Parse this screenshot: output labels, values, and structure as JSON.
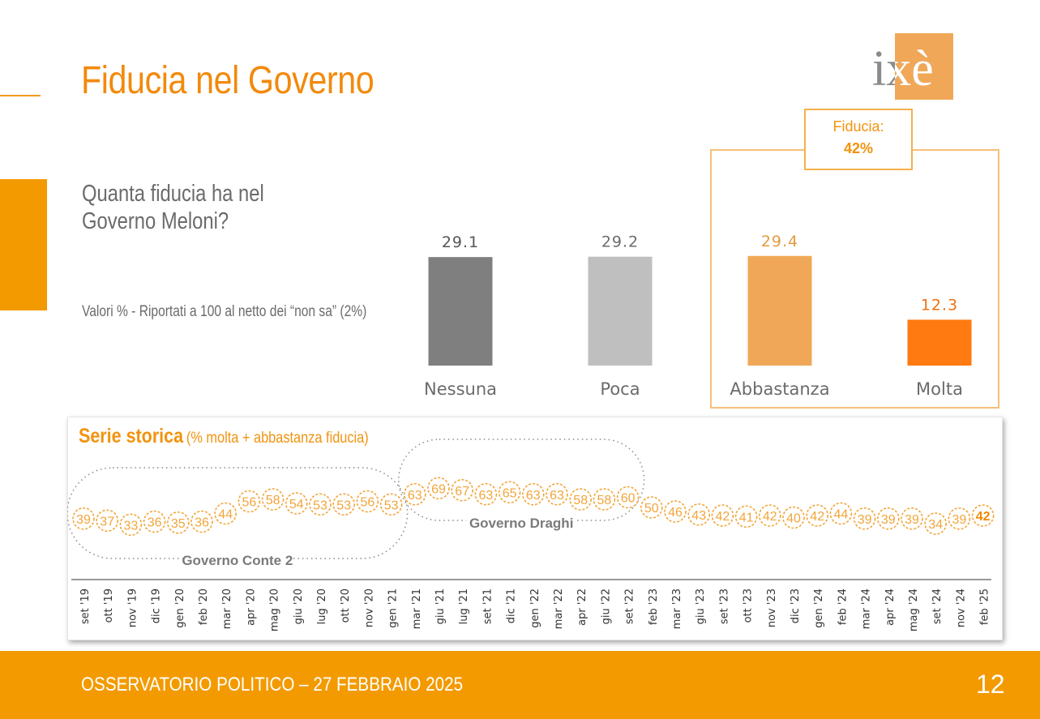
{
  "header": {
    "title": "Fiducia nel Governo"
  },
  "logo": {
    "text": "ixè"
  },
  "question": {
    "text": "Quanta fiducia ha nel\nGoverno Meloni?"
  },
  "note": {
    "text": "Valori % - Riportati a 100 al netto dei “non sa” (2%)"
  },
  "fiducia_box": {
    "label": "Fiducia:",
    "value": "42%"
  },
  "series_panel": {
    "title": "Serie storica",
    "subtitle": "(% molta + abbastanza fiducia)",
    "groups": [
      "Governo Conte 2",
      "Governo Draghi"
    ]
  },
  "footer": {
    "text": "OSSERVATORIO POLITICO – 27 FEBBRAIO 2025",
    "page": "12"
  },
  "colors": {
    "accent": "#f39a00",
    "title": "#f28a0c",
    "nessuna": "#7f7f7f",
    "poca": "#bfbfbf",
    "abbastanza": "#f0a858",
    "molta": "#ff7a10",
    "series_point": "#f2a53a"
  },
  "chart_data": [
    {
      "type": "bar",
      "title": "",
      "categories": [
        "Nessuna",
        "Poca",
        "Abbastanza",
        "Molta"
      ],
      "values": [
        29.1,
        29.2,
        29.4,
        12.3
      ],
      "value_labels": [
        "29.1",
        "29.2",
        "29.4",
        "12.3"
      ],
      "ylim": [
        0,
        30
      ],
      "grid": false
    },
    {
      "type": "line",
      "title": "Serie storica",
      "categories": [
        "set '19",
        "ott '19",
        "nov '19",
        "dic '19",
        "gen '20",
        "feb '20",
        "mar '20",
        "apr '20",
        "mag '20",
        "giu '20",
        "lug '20",
        "ott '20",
        "nov '20",
        "gen '21",
        "mar '21",
        "giu '21",
        "lug '21",
        "set '21",
        "dic '21",
        "gen '22",
        "mar '22",
        "apr '22",
        "giu '22",
        "set '22",
        "feb '23",
        "mar '23",
        "giu '23",
        "set '23",
        "ott '23",
        "nov '23",
        "dic '23",
        "gen '24",
        "feb '24",
        "mar '24",
        "apr '24",
        "mag '24",
        "set '24",
        "nov '24",
        "feb '25"
      ],
      "values": [
        39,
        37,
        33,
        36,
        35,
        36,
        44,
        56,
        58,
        54,
        53,
        53,
        56,
        53,
        63,
        69,
        67,
        63,
        65,
        63,
        63,
        58,
        58,
        60,
        50,
        46,
        43,
        42,
        41,
        42,
        40,
        42,
        44,
        39,
        39,
        39,
        34,
        39,
        42
      ],
      "groups": [
        {
          "name": "Governo Conte 2",
          "from": "set '19",
          "to": "gen '21"
        },
        {
          "name": "Governo Draghi",
          "from": "mar '21",
          "to": "set '22"
        }
      ]
    }
  ]
}
